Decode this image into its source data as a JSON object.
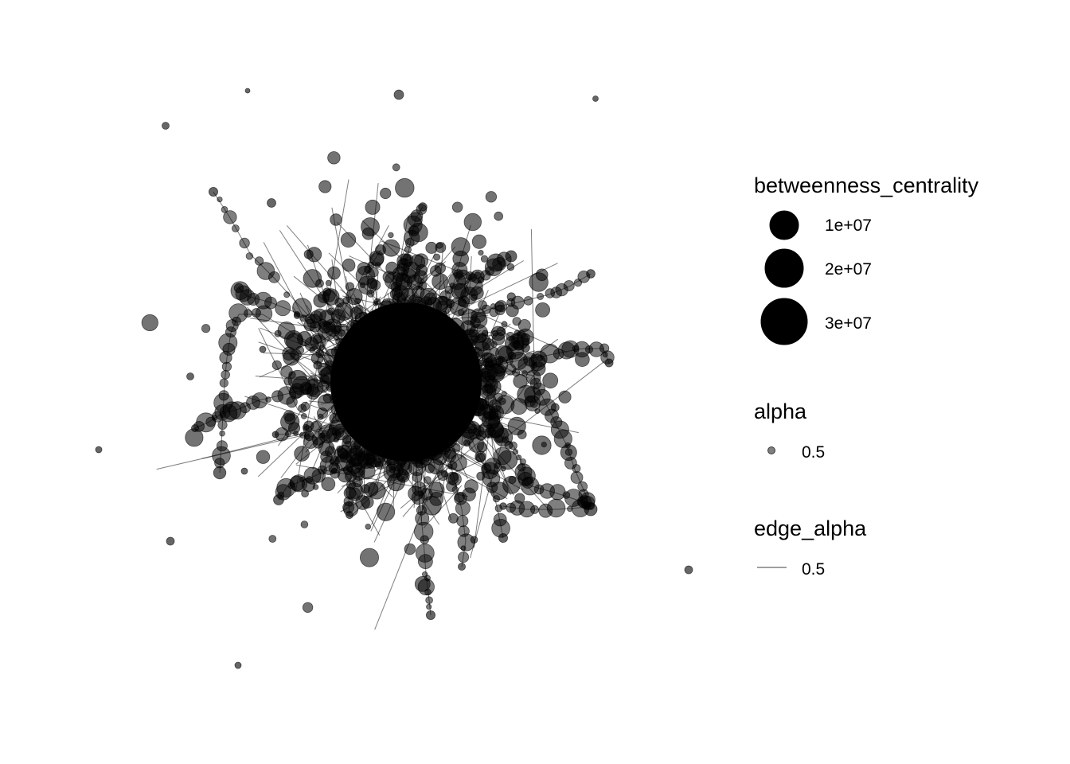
{
  "chart_data": {
    "type": "network",
    "node_color": "#000000",
    "node_alpha": 0.5,
    "edge_color": "#000000",
    "edge_alpha": 0.5,
    "legends": [
      {
        "title": "betweenness_centrality",
        "type": "size",
        "entries": [
          {
            "label": "1e+07",
            "value": 10000000
          },
          {
            "label": "2e+07",
            "value": 20000000
          },
          {
            "label": "3e+07",
            "value": 30000000
          }
        ]
      },
      {
        "title": "alpha",
        "type": "point",
        "entries": [
          {
            "label": "0.5"
          }
        ]
      },
      {
        "title": "edge_alpha",
        "type": "line",
        "entries": [
          {
            "label": "0.5"
          }
        ]
      }
    ]
  }
}
